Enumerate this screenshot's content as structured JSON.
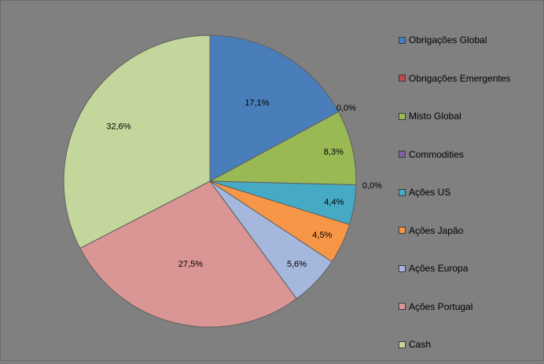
{
  "chart_data": {
    "type": "pie",
    "categories": [
      "Obrigações Global",
      "Obrigações Emergentes",
      "Misto Global",
      "Commodities",
      "Ações US",
      "Ações Japão",
      "Ações Europa",
      "Ações Portugal",
      "Cash"
    ],
    "values": [
      17.1,
      0.0,
      8.3,
      0.0,
      4.4,
      4.5,
      5.6,
      27.5,
      32.6
    ],
    "labels": [
      "17,1%",
      "0,0%",
      "8,3%",
      "0,0%",
      "4,4%",
      "4,5%",
      "5,6%",
      "27,5%",
      "32,6%"
    ],
    "colors": [
      "#4A7EBB",
      "#BE4B48",
      "#98B954",
      "#7D60A0",
      "#46AAC5",
      "#F79646",
      "#A5B7DD",
      "#D99694",
      "#C3D69B"
    ],
    "legend_position": "right"
  }
}
